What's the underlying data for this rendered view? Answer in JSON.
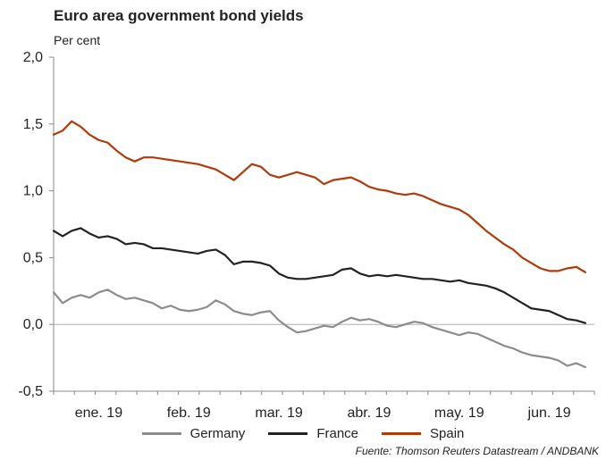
{
  "chart_data": {
    "type": "line",
    "title": "Euro area government bond yields",
    "ylabel": "Per cent",
    "source": "Fuente: Thomson Reuters Datastream / ANDBANK",
    "ylim": [
      -0.5,
      2.0
    ],
    "yticks": [
      "2,0",
      "1,5",
      "1,0",
      "0,5",
      "0,0",
      "-0,5"
    ],
    "ytick_values": [
      2.0,
      1.5,
      1.0,
      0.5,
      0.0,
      -0.5
    ],
    "x_month_labels": [
      "ene. 19",
      "feb. 19",
      "mar. 19",
      "abr. 19",
      "may. 19",
      "jun. 19"
    ],
    "x_range": [
      0,
      6
    ],
    "grid": false,
    "legend_position": "bottom",
    "series": [
      {
        "name": "Germany",
        "color": "#8c8c8c",
        "x": [
          0.0,
          0.1,
          0.2,
          0.3,
          0.4,
          0.5,
          0.6,
          0.7,
          0.8,
          0.9,
          1.0,
          1.1,
          1.2,
          1.3,
          1.4,
          1.5,
          1.6,
          1.7,
          1.8,
          1.9,
          2.0,
          2.1,
          2.2,
          2.3,
          2.4,
          2.5,
          2.6,
          2.7,
          2.8,
          2.9,
          3.0,
          3.1,
          3.2,
          3.3,
          3.4,
          3.5,
          3.6,
          3.7,
          3.8,
          3.9,
          4.0,
          4.1,
          4.2,
          4.3,
          4.4,
          4.5,
          4.6,
          4.7,
          4.8,
          4.9,
          5.0,
          5.1,
          5.2,
          5.3,
          5.4,
          5.5,
          5.6,
          5.7,
          5.8,
          5.9
        ],
        "y": [
          0.24,
          0.16,
          0.2,
          0.22,
          0.2,
          0.24,
          0.26,
          0.22,
          0.19,
          0.2,
          0.18,
          0.16,
          0.12,
          0.14,
          0.11,
          0.1,
          0.11,
          0.13,
          0.18,
          0.15,
          0.1,
          0.08,
          0.07,
          0.09,
          0.1,
          0.03,
          -0.02,
          -0.06,
          -0.05,
          -0.03,
          -0.01,
          -0.02,
          0.02,
          0.05,
          0.03,
          0.04,
          0.02,
          -0.01,
          -0.02,
          0.0,
          0.02,
          0.01,
          -0.02,
          -0.04,
          -0.06,
          -0.08,
          -0.06,
          -0.07,
          -0.1,
          -0.13,
          -0.16,
          -0.18,
          -0.21,
          -0.23,
          -0.24,
          -0.25,
          -0.27,
          -0.31,
          -0.29,
          -0.32
        ]
      },
      {
        "name": "France",
        "color": "#222222",
        "x": [
          0.0,
          0.1,
          0.2,
          0.3,
          0.4,
          0.5,
          0.6,
          0.7,
          0.8,
          0.9,
          1.0,
          1.1,
          1.2,
          1.3,
          1.4,
          1.5,
          1.6,
          1.7,
          1.8,
          1.9,
          2.0,
          2.1,
          2.2,
          2.3,
          2.4,
          2.5,
          2.6,
          2.7,
          2.8,
          2.9,
          3.0,
          3.1,
          3.2,
          3.3,
          3.4,
          3.5,
          3.6,
          3.7,
          3.8,
          3.9,
          4.0,
          4.1,
          4.2,
          4.3,
          4.4,
          4.5,
          4.6,
          4.7,
          4.8,
          4.9,
          5.0,
          5.1,
          5.2,
          5.3,
          5.4,
          5.5,
          5.6,
          5.7,
          5.8,
          5.9
        ],
        "y": [
          0.7,
          0.66,
          0.7,
          0.72,
          0.68,
          0.65,
          0.66,
          0.64,
          0.6,
          0.61,
          0.6,
          0.57,
          0.57,
          0.56,
          0.55,
          0.54,
          0.53,
          0.55,
          0.56,
          0.52,
          0.45,
          0.47,
          0.47,
          0.46,
          0.44,
          0.38,
          0.35,
          0.34,
          0.34,
          0.35,
          0.36,
          0.37,
          0.41,
          0.42,
          0.38,
          0.36,
          0.37,
          0.36,
          0.37,
          0.36,
          0.35,
          0.34,
          0.34,
          0.33,
          0.32,
          0.33,
          0.31,
          0.3,
          0.29,
          0.27,
          0.24,
          0.2,
          0.16,
          0.12,
          0.11,
          0.1,
          0.07,
          0.04,
          0.03,
          0.01
        ]
      },
      {
        "name": "Spain",
        "color": "#b03a0a",
        "x": [
          0.0,
          0.1,
          0.2,
          0.3,
          0.4,
          0.5,
          0.6,
          0.7,
          0.8,
          0.9,
          1.0,
          1.1,
          1.2,
          1.3,
          1.4,
          1.5,
          1.6,
          1.7,
          1.8,
          1.9,
          2.0,
          2.1,
          2.2,
          2.3,
          2.4,
          2.5,
          2.6,
          2.7,
          2.8,
          2.9,
          3.0,
          3.1,
          3.2,
          3.3,
          3.4,
          3.5,
          3.6,
          3.7,
          3.8,
          3.9,
          4.0,
          4.1,
          4.2,
          4.3,
          4.4,
          4.5,
          4.6,
          4.7,
          4.8,
          4.9,
          5.0,
          5.1,
          5.2,
          5.3,
          5.4,
          5.5,
          5.6,
          5.7,
          5.8,
          5.9
        ],
        "y": [
          1.42,
          1.45,
          1.52,
          1.48,
          1.42,
          1.38,
          1.36,
          1.3,
          1.25,
          1.22,
          1.25,
          1.25,
          1.24,
          1.23,
          1.22,
          1.21,
          1.2,
          1.18,
          1.16,
          1.12,
          1.08,
          1.14,
          1.2,
          1.18,
          1.12,
          1.1,
          1.12,
          1.14,
          1.12,
          1.1,
          1.05,
          1.08,
          1.09,
          1.1,
          1.07,
          1.03,
          1.01,
          1.0,
          0.98,
          0.97,
          0.98,
          0.96,
          0.93,
          0.9,
          0.88,
          0.86,
          0.82,
          0.76,
          0.7,
          0.65,
          0.6,
          0.56,
          0.5,
          0.46,
          0.42,
          0.4,
          0.4,
          0.42,
          0.43,
          0.39
        ]
      }
    ]
  }
}
